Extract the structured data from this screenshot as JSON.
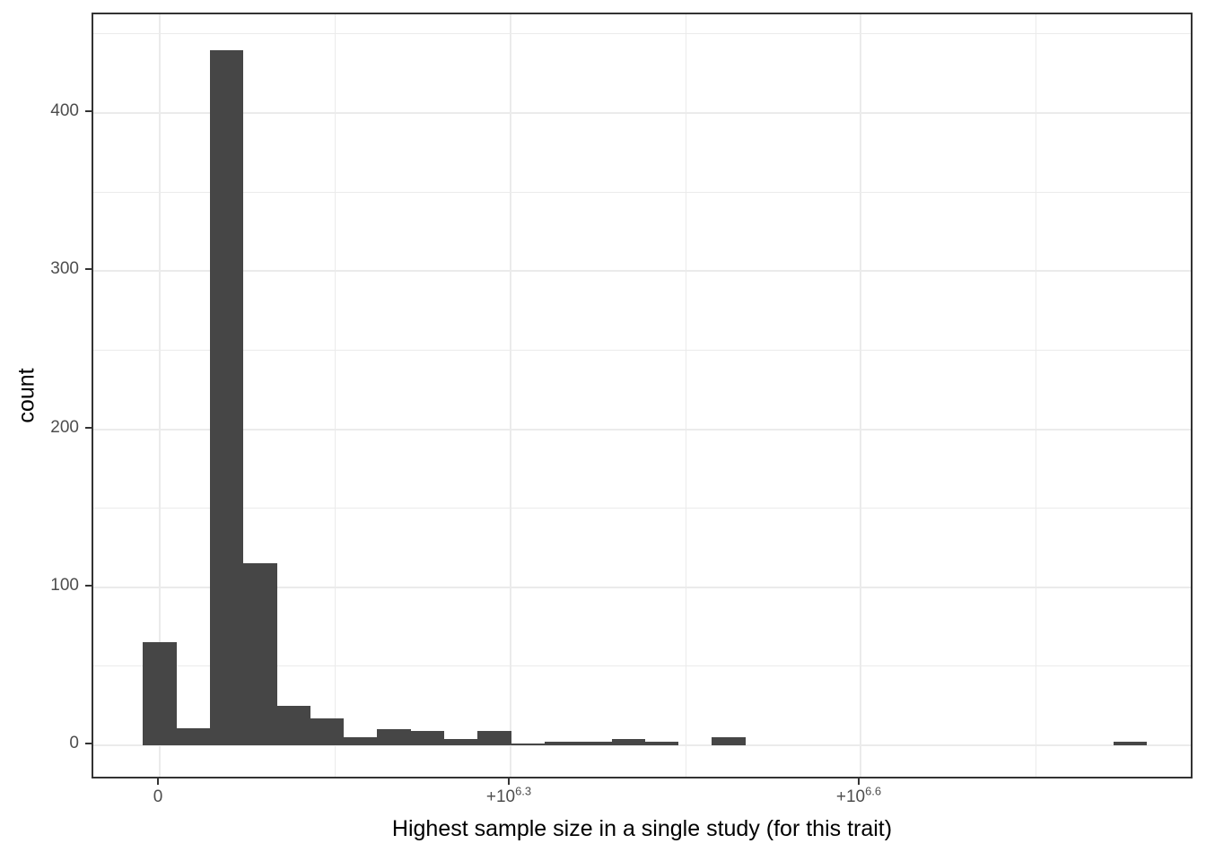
{
  "chart_data": {
    "type": "bar",
    "subtype": "histogram",
    "title": "",
    "xlabel": "Highest sample size in a single study (for this trait)",
    "ylabel": "count",
    "x_scale": "signed pseudo-log10 of sample size",
    "x_tick_labels": [
      "0",
      "+10^6.3",
      "+10^6.6"
    ],
    "y_tick_labels": [
      "0",
      "100",
      "200",
      "300",
      "400"
    ],
    "y_minor_gridlines": [
      50,
      150,
      250,
      350,
      450
    ],
    "ylim": [
      -22,
      462
    ],
    "grid": "major and minor, light gray on white",
    "legend": "none",
    "bin_counts": [
      65,
      11,
      440,
      115,
      25,
      17,
      5,
      10,
      9,
      4,
      9,
      1,
      2,
      2,
      4,
      2,
      0,
      5,
      0,
      0,
      0,
      0,
      0,
      0,
      0,
      0,
      0,
      0,
      0,
      2
    ],
    "bin_indexing": "bin 0 is centered on the x tick labeled 0; equal-width bins in transformed x units",
    "peak_count": 440
  },
  "colors": {
    "bar_fill": "#464646",
    "gridline": "#ebebeb",
    "panel_border": "#333333",
    "tick": "#333333",
    "tick_label": "#4d4d4d",
    "axis_title": "#000000",
    "background": "#ffffff"
  }
}
